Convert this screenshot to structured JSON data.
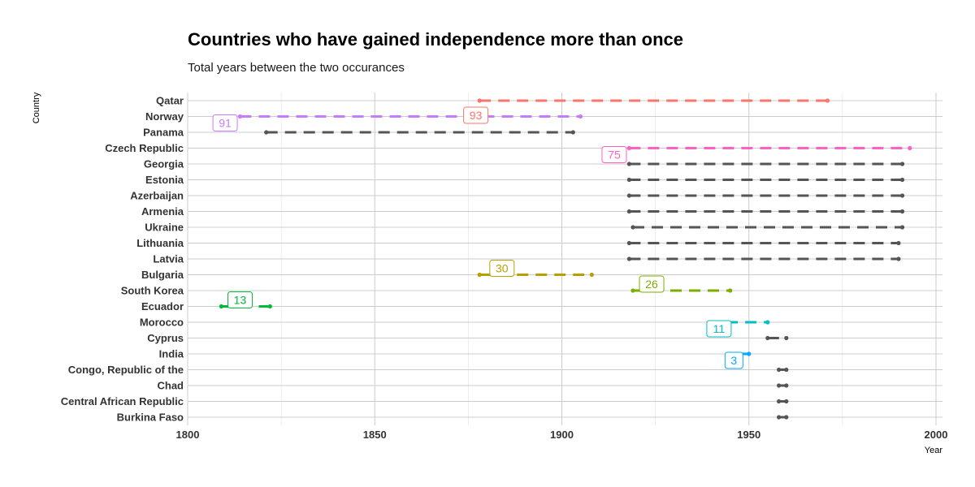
{
  "title": "Countries who have gained independence more than once",
  "subtitle": "Total years between the two occurances",
  "chart_data": {
    "type": "dumbbell",
    "title": "Countries who have gained independence more than once",
    "subtitle": "Total years between the two occurances",
    "xlabel": "Year",
    "ylabel": "Country",
    "xlim": [
      1800,
      2000
    ],
    "x_ticks": [
      1800,
      1850,
      1900,
      1950,
      2000
    ],
    "grid": true,
    "countries": [
      {
        "name": "Qatar",
        "start": 1878,
        "end": 1971,
        "years": 93,
        "color": "#F8766D",
        "highlight": true
      },
      {
        "name": "Norway",
        "start": 1814,
        "end": 1905,
        "years": 91,
        "color": "#C77CFF",
        "highlight": true
      },
      {
        "name": "Panama",
        "start": 1821,
        "end": 1903,
        "years": 82,
        "color": "#555555",
        "highlight": false
      },
      {
        "name": "Czech Republic",
        "start": 1918,
        "end": 1993,
        "years": 75,
        "color": "#FF61C3",
        "highlight": true
      },
      {
        "name": "Georgia",
        "start": 1918,
        "end": 1991,
        "years": 73,
        "color": "#555555",
        "highlight": false
      },
      {
        "name": "Estonia",
        "start": 1918,
        "end": 1991,
        "years": 73,
        "color": "#555555",
        "highlight": false
      },
      {
        "name": "Azerbaijan",
        "start": 1918,
        "end": 1991,
        "years": 73,
        "color": "#555555",
        "highlight": false
      },
      {
        "name": "Armenia",
        "start": 1918,
        "end": 1991,
        "years": 73,
        "color": "#555555",
        "highlight": false
      },
      {
        "name": "Ukraine",
        "start": 1919,
        "end": 1991,
        "years": 72,
        "color": "#555555",
        "highlight": false
      },
      {
        "name": "Lithuania",
        "start": 1918,
        "end": 1990,
        "years": 72,
        "color": "#555555",
        "highlight": false
      },
      {
        "name": "Latvia",
        "start": 1918,
        "end": 1990,
        "years": 72,
        "color": "#555555",
        "highlight": false
      },
      {
        "name": "Bulgaria",
        "start": 1878,
        "end": 1908,
        "years": 30,
        "color": "#B79F00",
        "highlight": true
      },
      {
        "name": "South Korea",
        "start": 1919,
        "end": 1945,
        "years": 26,
        "color": "#7CAE00",
        "highlight": true
      },
      {
        "name": "Ecuador",
        "start": 1809,
        "end": 1822,
        "years": 13,
        "color": "#00BA38",
        "highlight": true
      },
      {
        "name": "Morocco",
        "start": 1944,
        "end": 1955,
        "years": 11,
        "color": "#00BFC4",
        "highlight": true
      },
      {
        "name": "Cyprus",
        "start": 1955,
        "end": 1960,
        "years": 5,
        "color": "#555555",
        "highlight": false
      },
      {
        "name": "India",
        "start": 1947,
        "end": 1950,
        "years": 3,
        "color": "#00A9FF",
        "highlight": true
      },
      {
        "name": "Congo, Republic of the",
        "start": 1958,
        "end": 1960,
        "years": 2,
        "color": "#555555",
        "highlight": false
      },
      {
        "name": "Chad",
        "start": 1958,
        "end": 1960,
        "years": 2,
        "color": "#555555",
        "highlight": false
      },
      {
        "name": "Central African Republic",
        "start": 1958,
        "end": 1960,
        "years": 2,
        "color": "#555555",
        "highlight": false
      },
      {
        "name": "Burkina Faso",
        "start": 1958,
        "end": 1960,
        "years": 2,
        "color": "#555555",
        "highlight": false
      }
    ],
    "annotations": [
      {
        "country": "Qatar",
        "text": "93",
        "x": 1877
      },
      {
        "country": "Norway",
        "text": "91",
        "x": 1810
      },
      {
        "country": "Czech Republic",
        "text": "75",
        "x": 1914
      },
      {
        "country": "Bulgaria",
        "text": "30",
        "x": 1884
      },
      {
        "country": "South Korea",
        "text": "26",
        "x": 1924
      },
      {
        "country": "Ecuador",
        "text": "13",
        "x": 1814
      },
      {
        "country": "Morocco",
        "text": "11",
        "x": 1942
      },
      {
        "country": "India",
        "text": "3",
        "x": 1946
      }
    ]
  }
}
